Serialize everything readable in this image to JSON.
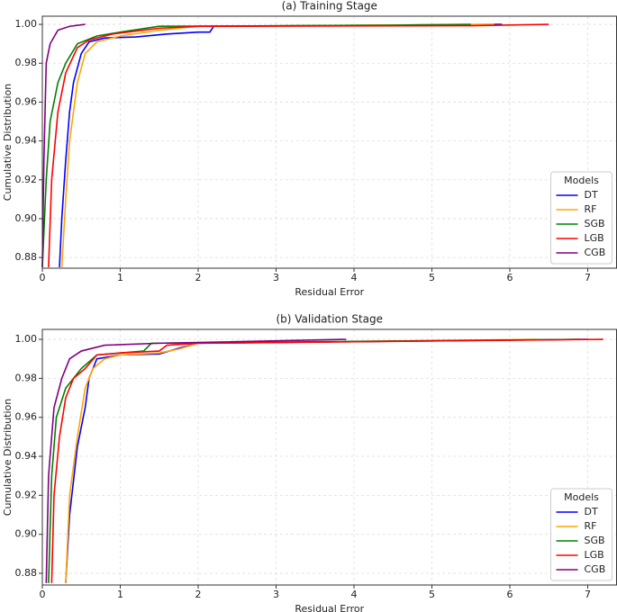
{
  "chart_data": [
    {
      "type": "line",
      "title": "(a) Training Stage",
      "x_label": "Residual Error",
      "y_label": "Cumulative Distribution",
      "xlim": [
        0,
        7.37
      ],
      "ylim": [
        0.8745,
        1.0042
      ],
      "xticks": [
        0,
        1,
        2,
        3,
        4,
        5,
        6,
        7
      ],
      "yticks": [
        0.88,
        {
          "value": 0.9,
          "label": "0.90"
        },
        0.92,
        0.94,
        0.96,
        0.98,
        {
          "value": 1.0,
          "label": "1.00"
        }
      ],
      "grid": true,
      "legend": "lower right",
      "legend_title": "Models",
      "series": [
        {
          "name": "DT",
          "color": "#0000ff",
          "x": [
            0.22,
            0.25,
            0.3,
            0.35,
            0.4,
            0.5,
            0.6,
            0.8,
            1.2,
            1.6,
            2.0,
            2.15,
            2.2,
            5.9
          ],
          "values": [
            0.875,
            0.9,
            0.93,
            0.955,
            0.97,
            0.985,
            0.991,
            0.993,
            0.9935,
            0.995,
            0.996,
            0.996,
            0.999,
            1.0
          ]
        },
        {
          "name": "RF",
          "color": "#ffa500",
          "x": [
            0.25,
            0.3,
            0.35,
            0.45,
            0.55,
            0.7,
            1.0,
            1.5,
            2.0,
            5.8
          ],
          "values": [
            0.875,
            0.91,
            0.94,
            0.97,
            0.985,
            0.991,
            0.994,
            0.997,
            0.999,
            1.0
          ]
        },
        {
          "name": "SGB",
          "color": "#008000",
          "x": [
            0.0,
            0.05,
            0.1,
            0.2,
            0.3,
            0.45,
            0.7,
            1.0,
            1.5,
            4.35,
            5.5
          ],
          "values": [
            0.875,
            0.92,
            0.95,
            0.97,
            0.98,
            0.99,
            0.994,
            0.996,
            0.999,
            0.9995,
            1.0
          ]
        },
        {
          "name": "LGB",
          "color": "#ff0000",
          "x": [
            0.08,
            0.12,
            0.2,
            0.3,
            0.45,
            0.6,
            0.9,
            1.5,
            2.0,
            5.5,
            6.5
          ],
          "values": [
            0.875,
            0.92,
            0.955,
            0.975,
            0.988,
            0.992,
            0.995,
            0.998,
            0.999,
            0.9993,
            1.0
          ]
        },
        {
          "name": "CGB",
          "color": "#800080",
          "x": [
            0.0,
            0.02,
            0.05,
            0.1,
            0.2,
            0.35,
            0.55
          ],
          "values": [
            0.875,
            0.93,
            0.98,
            0.99,
            0.997,
            0.999,
            1.0
          ]
        }
      ]
    },
    {
      "type": "line",
      "title": "(b) Validation Stage",
      "x_label": "Residual Error",
      "y_label": "Cumulative Distribution",
      "xlim": [
        0,
        7.37
      ],
      "ylim": [
        0.874,
        1.0051
      ],
      "xticks": [
        0,
        1,
        2,
        3,
        4,
        5,
        6,
        7
      ],
      "yticks": [
        0.88,
        {
          "value": 0.9,
          "label": "0.90"
        },
        0.92,
        0.94,
        0.96,
        0.98,
        {
          "value": 1.0,
          "label": "1.00"
        }
      ],
      "grid": true,
      "legend": "lower right",
      "legend_title": "Models",
      "series": [
        {
          "name": "DT",
          "color": "#0000ff",
          "x": [
            0.3,
            0.35,
            0.45,
            0.55,
            0.6,
            0.7,
            1.0,
            1.5,
            1.8,
            2.0,
            7.0
          ],
          "values": [
            0.875,
            0.91,
            0.945,
            0.965,
            0.98,
            0.99,
            0.992,
            0.9925,
            0.996,
            0.998,
            1.0
          ]
        },
        {
          "name": "RF",
          "color": "#ffa500",
          "x": [
            0.3,
            0.35,
            0.45,
            0.55,
            0.65,
            0.8,
            1.0,
            1.5,
            1.75,
            2.0,
            6.35
          ],
          "values": [
            0.875,
            0.92,
            0.95,
            0.975,
            0.985,
            0.99,
            0.992,
            0.993,
            0.995,
            0.998,
            1.0
          ]
        },
        {
          "name": "SGB",
          "color": "#008000",
          "x": [
            0.08,
            0.12,
            0.18,
            0.3,
            0.5,
            0.7,
            1.0,
            1.3,
            1.4,
            6.9
          ],
          "values": [
            0.875,
            0.93,
            0.96,
            0.975,
            0.985,
            0.992,
            0.993,
            0.994,
            0.998,
            1.0
          ]
        },
        {
          "name": "LGB",
          "color": "#ff0000",
          "x": [
            0.12,
            0.15,
            0.22,
            0.3,
            0.4,
            0.55,
            0.7,
            1.0,
            1.5,
            1.6,
            2.0,
            7.2
          ],
          "values": [
            0.875,
            0.92,
            0.95,
            0.97,
            0.98,
            0.985,
            0.992,
            0.993,
            0.994,
            0.997,
            0.998,
            1.0
          ]
        },
        {
          "name": "CGB",
          "color": "#800080",
          "x": [
            0.05,
            0.08,
            0.15,
            0.25,
            0.35,
            0.5,
            0.8,
            1.5,
            3.9
          ],
          "values": [
            0.875,
            0.93,
            0.965,
            0.98,
            0.99,
            0.994,
            0.997,
            0.998,
            1.0
          ]
        }
      ]
    }
  ]
}
